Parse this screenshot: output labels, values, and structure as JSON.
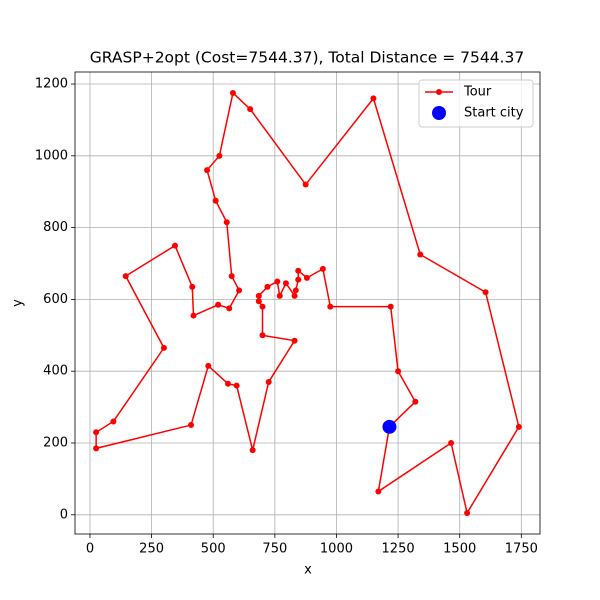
{
  "chart_data": {
    "type": "line",
    "title": "GRASP+2opt (Cost=7544.37), Total Distance = 7544.37",
    "xlabel": "x",
    "ylabel": "y",
    "xlim": [
      -60.75,
      1825.75
    ],
    "ylim": [
      -53.5,
      1233.5
    ],
    "xticks": [
      0,
      250,
      500,
      750,
      1000,
      1250,
      1500,
      1750
    ],
    "yticks": [
      0,
      200,
      400,
      600,
      800,
      1000,
      1200
    ],
    "grid": true,
    "legend": "upper right",
    "series": [
      {
        "name": "Tour",
        "color": "red",
        "x": [
          1215,
          1170,
          1465,
          1530,
          1740,
          1605,
          1340,
          1150,
          875,
          650,
          580,
          525,
          475,
          510,
          555,
          575,
          605,
          565,
          520,
          420,
          415,
          345,
          145,
          300,
          95,
          25,
          25,
          410,
          480,
          560,
          595,
          660,
          725,
          830,
          700,
          700,
          685,
          685,
          720,
          760,
          770,
          795,
          830,
          835,
          845,
          845,
          880,
          945,
          975,
          1220,
          1250,
          1320,
          1215
        ],
        "y": [
          245,
          65,
          200,
          5,
          245,
          620,
          725,
          1160,
          920,
          1130,
          1175,
          1000,
          960,
          875,
          815,
          665,
          625,
          575,
          585,
          555,
          635,
          750,
          665,
          465,
          260,
          230,
          185,
          250,
          415,
          365,
          360,
          180,
          370,
          485,
          500,
          580,
          595,
          610,
          635,
          650,
          610,
          645,
          610,
          625,
          655,
          680,
          660,
          685,
          580,
          580,
          400,
          315,
          245
        ]
      },
      {
        "name": "Start city",
        "color": "blue",
        "x": [
          1215
        ],
        "y": [
          245
        ]
      }
    ]
  }
}
